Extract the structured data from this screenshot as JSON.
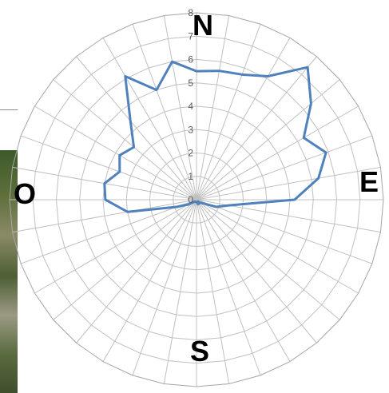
{
  "chart_data": {
    "type": "radar",
    "title": "",
    "series": [
      {
        "name": "",
        "color": "#4f81bd",
        "values": [
          5.5,
          5.6,
          5.7,
          6.1,
          7.4,
          6.4,
          5.3,
          5.9,
          5.3,
          4.2,
          1.4,
          0.9,
          0.3,
          0.2,
          0.1,
          0.2,
          0.2,
          0.1,
          0.1,
          0.1,
          0.1,
          0.1,
          0.1,
          0.15,
          0.4,
          0.9,
          3.0,
          3.9,
          4.0,
          3.5,
          3.8,
          3.5,
          4.4,
          6.1,
          5.0,
          6.0
        ]
      }
    ],
    "r_min": 0,
    "r_max": 8,
    "r_ticks": [
      0,
      1,
      2,
      3,
      4,
      5,
      6,
      7,
      8
    ],
    "spokes": 36,
    "grid": true,
    "tick_color": "#595959",
    "grid_color": "#c0c0c0"
  },
  "compass": {
    "north": "N",
    "east": "E",
    "south": "S",
    "west": "O"
  }
}
